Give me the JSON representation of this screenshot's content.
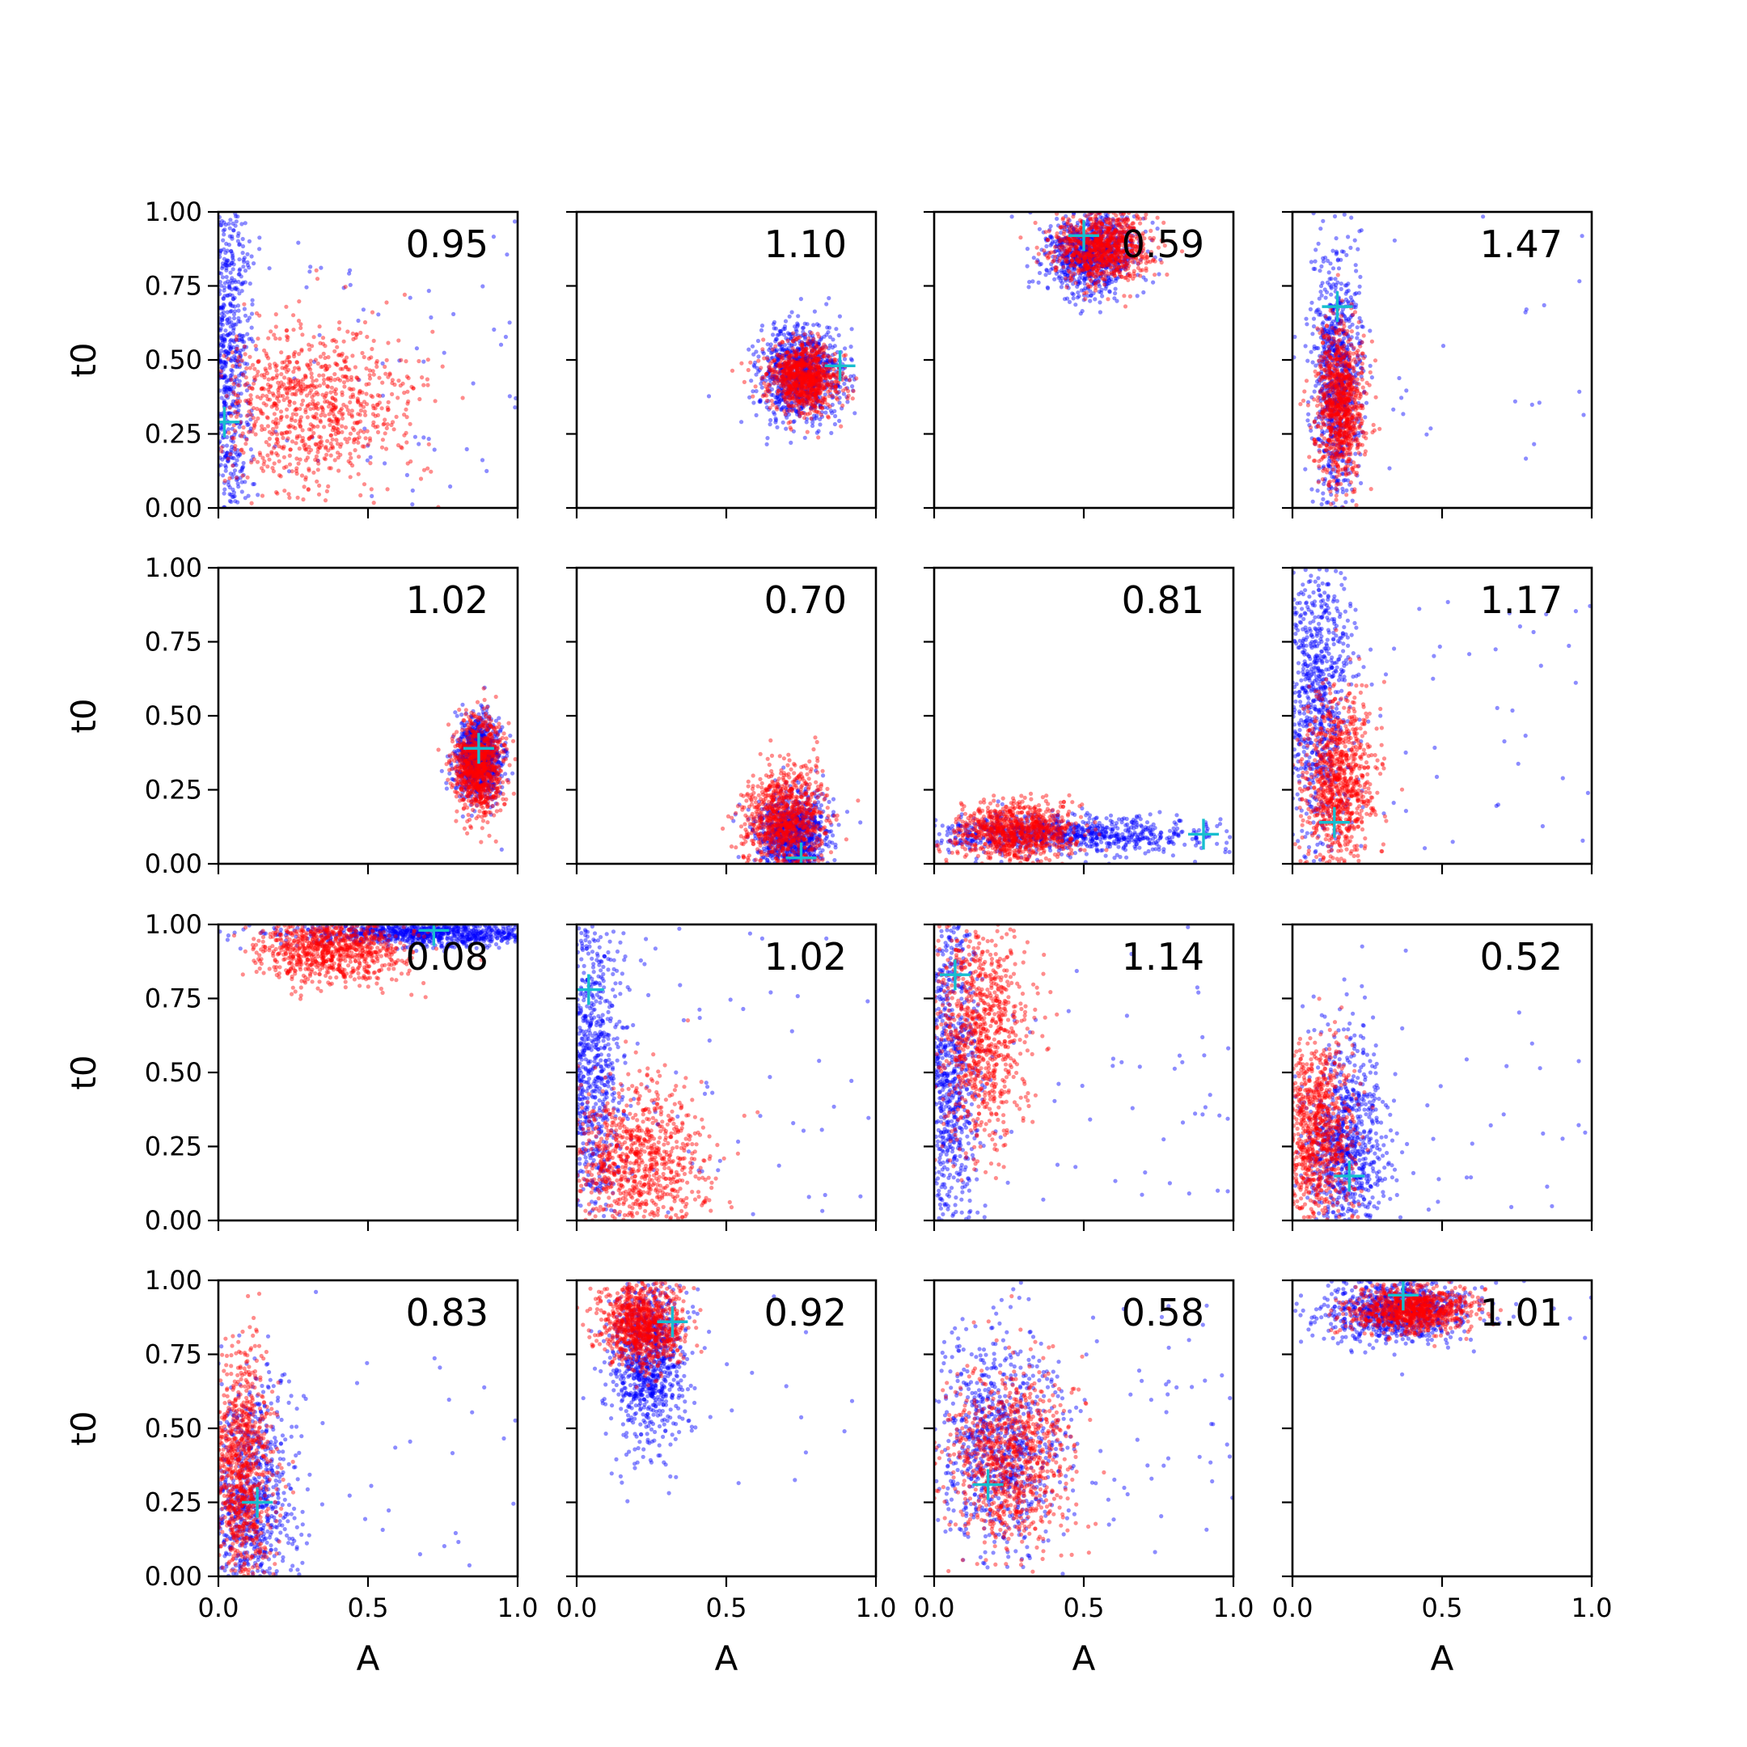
{
  "chart_data": {
    "type": "scatter",
    "layout": {
      "rows": 4,
      "cols": 4,
      "sharex": true,
      "sharey": true
    },
    "xlabel": "A",
    "ylabel": "t0",
    "xlim": [
      0,
      1
    ],
    "ylim": [
      0,
      1
    ],
    "xticks": [
      "0.0",
      "0.5",
      "1.0"
    ],
    "yticks": [
      "0.00",
      "0.25",
      "0.50",
      "0.75",
      "1.00"
    ],
    "series_colors": {
      "blue": "#0000ff",
      "red": "#ff0000",
      "marker": "#17becf"
    },
    "panels": [
      {
        "value": "0.95",
        "marker": [
          0.02,
          0.29
        ],
        "blue": {
          "type": "blob",
          "cx": 0.03,
          "cy": 0.5,
          "sx": 0.04,
          "sy": 0.35,
          "n": 900,
          "tail": 0.1
        },
        "red": {
          "type": "blob",
          "cx": 0.3,
          "cy": 0.35,
          "sx": 0.17,
          "sy": 0.14,
          "n": 900
        }
      },
      {
        "value": "1.10",
        "marker": [
          0.88,
          0.48
        ],
        "blue": {
          "type": "blob",
          "cx": 0.75,
          "cy": 0.45,
          "sx": 0.07,
          "sy": 0.08,
          "n": 900
        },
        "red": {
          "type": "blob",
          "cx": 0.76,
          "cy": 0.44,
          "sx": 0.06,
          "sy": 0.06,
          "n": 900
        }
      },
      {
        "value": "0.59",
        "marker": [
          0.5,
          0.92
        ],
        "blue": {
          "type": "blob",
          "cx": 0.52,
          "cy": 0.86,
          "sx": 0.08,
          "sy": 0.07,
          "n": 900
        },
        "red": {
          "type": "blob",
          "cx": 0.56,
          "cy": 0.88,
          "sx": 0.08,
          "sy": 0.06,
          "n": 900
        }
      },
      {
        "value": "1.47",
        "marker": [
          0.15,
          0.68
        ],
        "blue": {
          "type": "blob",
          "cx": 0.15,
          "cy": 0.45,
          "sx": 0.04,
          "sy": 0.22,
          "n": 900,
          "tail": 0.04
        },
        "red": {
          "type": "blob",
          "cx": 0.16,
          "cy": 0.35,
          "sx": 0.04,
          "sy": 0.14,
          "n": 900
        }
      },
      {
        "value": "1.02",
        "marker": [
          0.87,
          0.39
        ],
        "blue": {
          "type": "blob",
          "cx": 0.87,
          "cy": 0.36,
          "sx": 0.04,
          "sy": 0.07,
          "n": 900
        },
        "red": {
          "type": "blob",
          "cx": 0.87,
          "cy": 0.33,
          "sx": 0.04,
          "sy": 0.08,
          "n": 900
        }
      },
      {
        "value": "0.70",
        "marker": [
          0.75,
          0.02
        ],
        "blue": {
          "type": "blob",
          "cx": 0.72,
          "cy": 0.1,
          "sx": 0.06,
          "sy": 0.07,
          "n": 900
        },
        "red": {
          "type": "blob",
          "cx": 0.7,
          "cy": 0.15,
          "sx": 0.07,
          "sy": 0.09,
          "n": 900
        }
      },
      {
        "value": "0.81",
        "marker": [
          0.9,
          0.1
        ],
        "blue": {
          "type": "blob",
          "cx": 0.4,
          "cy": 0.1,
          "sx": 0.25,
          "sy": 0.03,
          "n": 900,
          "tail": 0.08
        },
        "red": {
          "type": "blob",
          "cx": 0.27,
          "cy": 0.11,
          "sx": 0.1,
          "sy": 0.05,
          "n": 900
        }
      },
      {
        "value": "1.17",
        "marker": [
          0.14,
          0.14
        ],
        "blue": {
          "type": "blob",
          "cx": 0.08,
          "cy": 0.55,
          "sx": 0.06,
          "sy": 0.25,
          "n": 900,
          "tail": 0.07
        },
        "red": {
          "type": "blob",
          "cx": 0.15,
          "cy": 0.28,
          "sx": 0.06,
          "sy": 0.15,
          "n": 900
        }
      },
      {
        "value": "0.08",
        "marker": [
          0.72,
          0.98
        ],
        "blue": {
          "type": "blob",
          "cx": 0.7,
          "cy": 0.97,
          "sx": 0.2,
          "sy": 0.02,
          "n": 900,
          "tail": 0.04
        },
        "red": {
          "type": "blob",
          "cx": 0.38,
          "cy": 0.92,
          "sx": 0.12,
          "sy": 0.06,
          "n": 900
        }
      },
      {
        "value": "1.02",
        "marker": [
          0.04,
          0.78
        ],
        "blue": {
          "type": "blob",
          "cx": 0.05,
          "cy": 0.5,
          "sx": 0.05,
          "sy": 0.3,
          "n": 900,
          "tail": 0.1
        },
        "red": {
          "type": "blob",
          "cx": 0.2,
          "cy": 0.2,
          "sx": 0.12,
          "sy": 0.14,
          "n": 900
        }
      },
      {
        "value": "1.14",
        "marker": [
          0.07,
          0.83
        ],
        "blue": {
          "type": "blob",
          "cx": 0.05,
          "cy": 0.5,
          "sx": 0.05,
          "sy": 0.3,
          "n": 900,
          "tail": 0.1
        },
        "red": {
          "type": "blob",
          "cx": 0.15,
          "cy": 0.65,
          "sx": 0.08,
          "sy": 0.2,
          "n": 900
        }
      },
      {
        "value": "0.52",
        "marker": [
          0.19,
          0.15
        ],
        "blue": {
          "type": "blob",
          "cx": 0.18,
          "cy": 0.25,
          "sx": 0.07,
          "sy": 0.18,
          "n": 900,
          "tail": 0.03
        },
        "red": {
          "type": "blob",
          "cx": 0.08,
          "cy": 0.28,
          "sx": 0.06,
          "sy": 0.16,
          "n": 900
        }
      },
      {
        "value": "0.83",
        "marker": [
          0.13,
          0.25
        ],
        "blue": {
          "type": "blob",
          "cx": 0.1,
          "cy": 0.25,
          "sx": 0.08,
          "sy": 0.2,
          "n": 900,
          "tail": 0.06
        },
        "red": {
          "type": "blob",
          "cx": 0.08,
          "cy": 0.35,
          "sx": 0.05,
          "sy": 0.2,
          "n": 900
        }
      },
      {
        "value": "0.92",
        "marker": [
          0.32,
          0.86
        ],
        "blue": {
          "type": "blob",
          "cx": 0.24,
          "cy": 0.72,
          "sx": 0.06,
          "sy": 0.14,
          "n": 900,
          "tail": 0.03
        },
        "red": {
          "type": "blob",
          "cx": 0.22,
          "cy": 0.85,
          "sx": 0.07,
          "sy": 0.07,
          "n": 900
        }
      },
      {
        "value": "0.58",
        "marker": [
          0.18,
          0.31
        ],
        "blue": {
          "type": "blob",
          "cx": 0.22,
          "cy": 0.45,
          "sx": 0.1,
          "sy": 0.18,
          "n": 900,
          "tail": 0.1
        },
        "red": {
          "type": "blob",
          "cx": 0.25,
          "cy": 0.4,
          "sx": 0.1,
          "sy": 0.15,
          "n": 900
        }
      },
      {
        "value": "1.01",
        "marker": [
          0.37,
          0.95
        ],
        "blue": {
          "type": "blob",
          "cx": 0.35,
          "cy": 0.9,
          "sx": 0.12,
          "sy": 0.05,
          "n": 900,
          "tail": 0.03
        },
        "red": {
          "type": "blob",
          "cx": 0.4,
          "cy": 0.9,
          "sx": 0.1,
          "sy": 0.04,
          "n": 900
        }
      }
    ]
  }
}
